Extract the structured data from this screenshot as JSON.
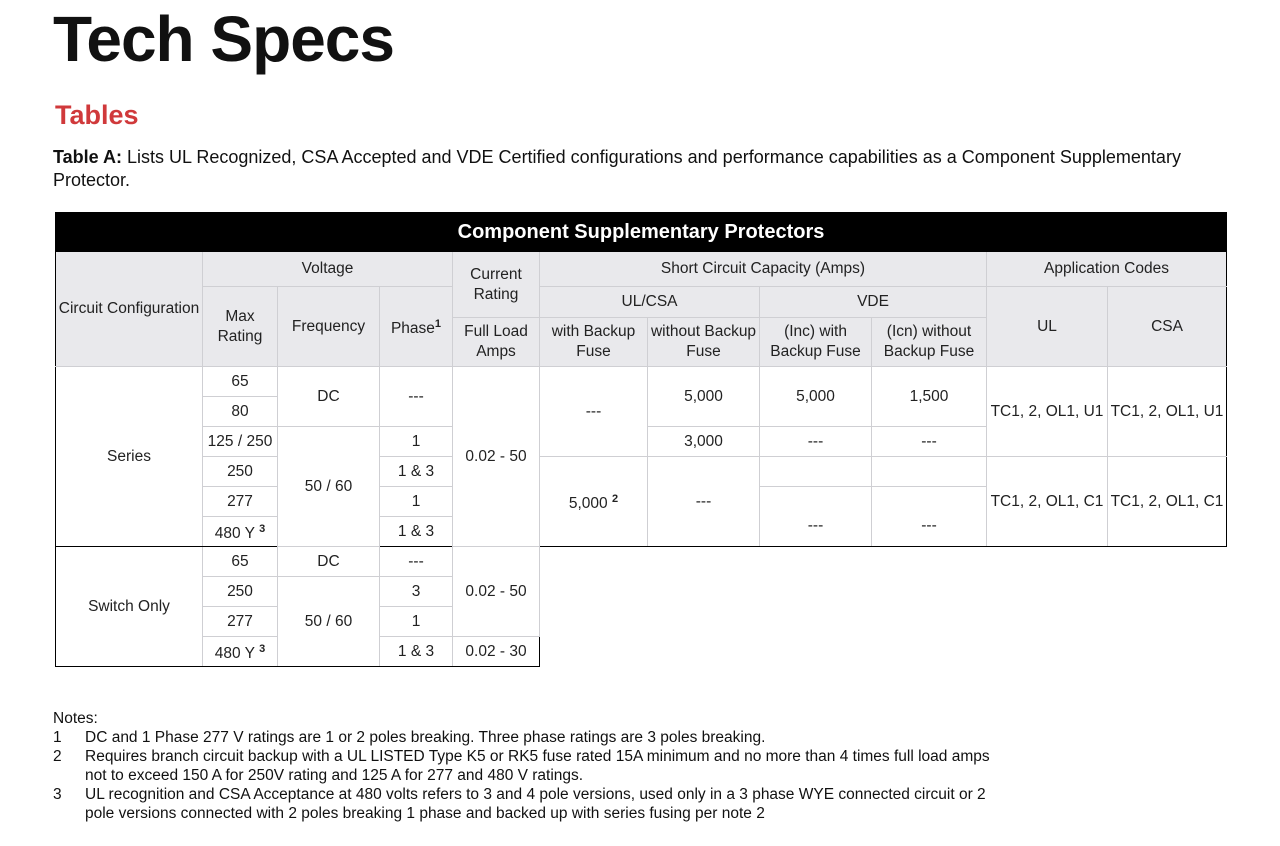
{
  "title": "Tech Specs",
  "subtitle": "Tables",
  "intro": {
    "label": "Table A:",
    "text": " Lists UL Recognized, CSA Accepted and VDE Certified configurations and performance capabilities as a Component Supplementary Protector."
  },
  "table": {
    "caption": "Component Supplementary Protectors",
    "headers": {
      "circuit": "Circuit Configuration",
      "voltage": "Voltage",
      "max_rating": "Max Rating",
      "frequency": "Frequency",
      "phase": "Phase",
      "phase_note": "1",
      "current": "Current Rating",
      "full_load": "Full Load Amps",
      "scc": "Short Circuit Capacity (Amps)",
      "ulcsa": "UL/CSA",
      "vde": "VDE",
      "with": "with Backup Fuse",
      "without": "without Backup Fuse",
      "inc": "(Inc) with Backup Fuse",
      "icn": "(Icn) without Backup Fuse",
      "app": "Application Codes",
      "ul": "UL",
      "csa": "CSA"
    },
    "series": {
      "label": "Series",
      "max": [
        "65",
        "80",
        "125 / 250",
        "250",
        "277",
        "480 Y"
      ],
      "max_note": "3",
      "freq_dc": "DC",
      "freq_ac": "50 / 60",
      "phase": [
        "---",
        "1",
        "1 & 3",
        "1",
        "1 & 3"
      ],
      "current": "0.02 - 50",
      "with_a": "---",
      "with_b": "5,000",
      "with_b_note": "2",
      "without": [
        "5,000",
        "3,000",
        "---"
      ],
      "inc": [
        "5,000",
        "---",
        "",
        "---"
      ],
      "icn": [
        "1,500",
        "---",
        "",
        "---"
      ],
      "ul": [
        "TC1, 2, OL1, U1",
        "TC1, 2, OL1, C1"
      ],
      "csa": [
        "TC1, 2, OL1, U1",
        "TC1, 2, OL1, C1"
      ]
    },
    "switch": {
      "label": "Switch Only",
      "max": [
        "65",
        "250",
        "277",
        "480 Y"
      ],
      "max_note": "3",
      "freq_dc": "DC",
      "freq_ac": "50 / 60",
      "phase": [
        "---",
        "3",
        "1",
        "1 & 3"
      ],
      "current": [
        "0.02 - 50",
        "0.02 - 30"
      ]
    }
  },
  "notes": {
    "heading": "Notes:",
    "items": [
      {
        "k": "1",
        "t": "DC and 1 Phase 277 V ratings are 1 or 2 poles breaking. Three phase ratings are 3 poles breaking."
      },
      {
        "k": "2",
        "t": "Requires branch circuit backup with a UL LISTED Type K5 or RK5 fuse rated 15A minimum and no more than 4 times full load amps not to exceed 150 A for 250V rating and 125 A for 277 and 480 V ratings."
      },
      {
        "k": "3",
        "t": "UL recognition and CSA Acceptance at 480 volts refers to 3 and 4 pole versions, used only in a 3 phase WYE connected circuit or 2 pole versions connected with 2 poles breaking 1 phase and backed up with series fusing per note 2"
      }
    ]
  }
}
